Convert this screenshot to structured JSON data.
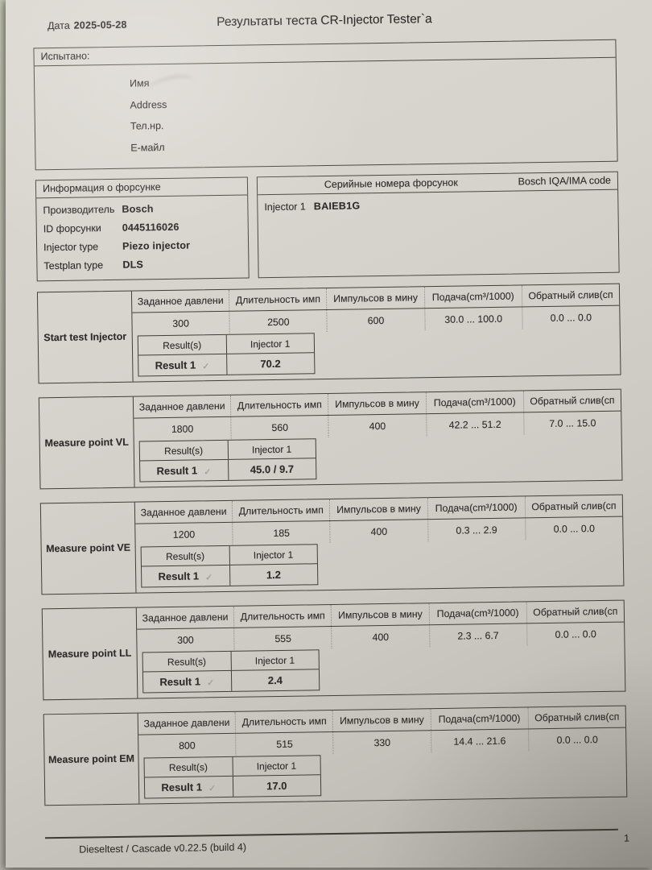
{
  "page": {
    "date_label": "Дата",
    "date_value": "2025-05-28",
    "title": "Результаты теста CR-Injector Tester`a",
    "footer_text": "Dieseltest / Cascade v0.22.5 (build 4)",
    "page_number": "1"
  },
  "tested_box": {
    "header": "Испытано:",
    "fields": [
      "Имя",
      "Address",
      "Тел.нр.",
      "Е-майл"
    ]
  },
  "injector_info": {
    "header": "Информация о форсунке",
    "rows": [
      {
        "label": "Производитель",
        "value": "Bosch"
      },
      {
        "label": "ID форсунки",
        "value": "0445116026"
      },
      {
        "label": "Injector type",
        "value": "Piezo injector"
      },
      {
        "label": "Testplan type",
        "value": "DLS"
      }
    ]
  },
  "serial_box": {
    "header": "Серийные номера форсунок",
    "code_header": "Bosch IQA/IMA code",
    "injector_label": "Injector 1",
    "injector_serial": "BAIEB1G"
  },
  "table_columns": [
    "Заданное давлени",
    "Длительность имп",
    "Импульсов в мину",
    "Подача(cm³/1000)",
    "Обратный слив(сп"
  ],
  "result_labels": {
    "results": "Result(s)",
    "injector": "Injector 1",
    "result1": "Result 1",
    "check": "✓"
  },
  "tests": [
    {
      "name": "Start test Injector",
      "values": [
        "300",
        "2500",
        "600",
        "30.0 ... 100.0",
        "0.0 ... 0.0"
      ],
      "result": "70.2"
    },
    {
      "name": "Measure point VL",
      "values": [
        "1800",
        "560",
        "400",
        "42.2 ... 51.2",
        "7.0 ... 15.0"
      ],
      "result": "45.0 / 9.7"
    },
    {
      "name": "Measure point VE",
      "values": [
        "1200",
        "185",
        "400",
        "0.3 ... 2.9",
        "0.0 ... 0.0"
      ],
      "result": "1.2"
    },
    {
      "name": "Measure point LL",
      "values": [
        "300",
        "555",
        "400",
        "2.3 ... 6.7",
        "0.0 ... 0.0"
      ],
      "result": "2.4"
    },
    {
      "name": "Measure point EM",
      "values": [
        "800",
        "515",
        "330",
        "14.4 ... 21.6",
        "0.0 ... 0.0"
      ],
      "result": "17.0"
    }
  ]
}
